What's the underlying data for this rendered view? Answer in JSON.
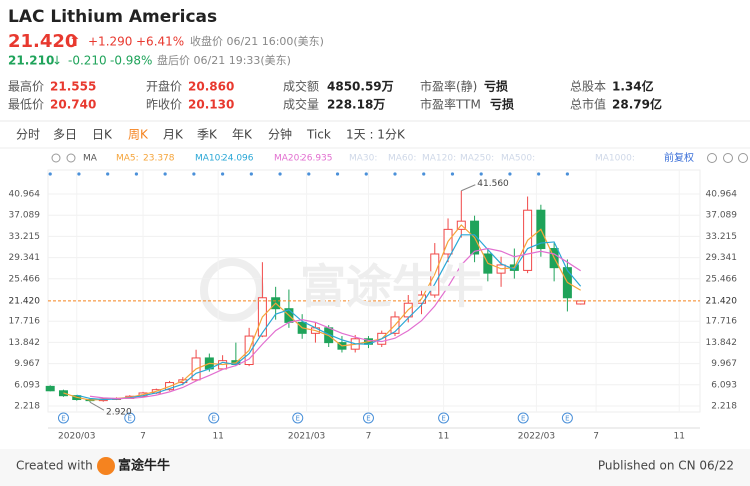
{
  "header": {
    "title": "LAC Lithium Americas",
    "price": "21.420",
    "arrow_up": "⬆",
    "change": "+1.290",
    "change_pct": "+6.41%",
    "close_info": "收盘价 06/21 16:00(美东)",
    "after_price": "21.210",
    "arrow_down": "↓",
    "after_change": "-0.210",
    "after_pct": "-0.98%",
    "after_info": "盘后价 06/21 19:33(美东)"
  },
  "stats": [
    [
      [
        "最高价",
        "21.555"
      ],
      [
        "开盘价",
        "20.860"
      ],
      [
        "成交额",
        "4850.59万"
      ],
      [
        "市盈率(静)",
        "亏损"
      ],
      [
        "总股本",
        "1.34亿"
      ]
    ],
    [
      [
        "最低价",
        "20.740"
      ],
      [
        "昨收价",
        "20.130"
      ],
      [
        "成交量",
        "228.18万"
      ],
      [
        "市盈率TTM",
        "亏损"
      ],
      [
        "总市值",
        "28.79亿"
      ]
    ]
  ],
  "tabs": [
    "分时",
    "多日",
    "日K",
    "周K",
    "月K",
    "季K",
    "年K",
    "分钟",
    "Tick",
    "1天 : 1分K"
  ],
  "active_tab": "周K",
  "indicator": {
    "ma": "MA",
    "inactive": [
      "MA30:",
      "MA60:",
      "MA120:",
      "MA250:",
      "MA500:",
      "MA1000:"
    ],
    "adjust": "前复权"
  },
  "event_marker": "E",
  "watermark": "富途牛牛",
  "footer": {
    "created": "Created with",
    "brand": "富途牛牛",
    "published": "Published on CN 06/22"
  },
  "chart_data": {
    "type": "candlestick",
    "x": [
      0,
      3,
      6,
      9,
      12,
      15,
      18,
      21,
      24,
      27,
      30,
      33,
      36,
      39,
      42,
      45,
      48,
      51,
      54,
      57,
      60,
      63,
      66,
      69,
      72,
      75,
      78,
      81,
      84,
      87,
      90,
      93,
      96,
      99,
      102,
      105,
      108,
      111,
      114,
      117,
      120
    ],
    "open": [
      5.8,
      5.0,
      4.1,
      3.4,
      3.2,
      3.5,
      3.6,
      4.0,
      4.6,
      5.2,
      6.5,
      7.0,
      11.0,
      9.0,
      10.5,
      9.8,
      15.0,
      22.0,
      20.0,
      17.5,
      15.5,
      16.5,
      13.8,
      12.6,
      14.5,
      13.5,
      15.5,
      18.5,
      21.0,
      22.5,
      30.0,
      34.5,
      36.0,
      30.0,
      26.5,
      28.0,
      27.0,
      38.0,
      31.0,
      27.5,
      20.86
    ],
    "high": [
      6.0,
      5.2,
      4.2,
      3.6,
      3.6,
      3.8,
      4.2,
      4.8,
      5.4,
      6.8,
      7.5,
      12.5,
      11.8,
      11.5,
      13.8,
      16.5,
      28.5,
      24.0,
      23.5,
      19.0,
      17.5,
      17.0,
      15.0,
      15.2,
      15.0,
      16.0,
      19.5,
      22.5,
      24.0,
      32.0,
      36.5,
      41.56,
      37.0,
      31.0,
      29.5,
      31.0,
      40.5,
      39.0,
      32.0,
      29.0,
      21.555
    ],
    "low": [
      4.9,
      3.9,
      3.2,
      2.92,
      3.0,
      3.3,
      3.5,
      3.9,
      4.4,
      5.0,
      6.0,
      6.8,
      8.5,
      8.8,
      9.5,
      9.5,
      14.8,
      18.0,
      16.5,
      14.5,
      13.8,
      13.0,
      12.0,
      12.0,
      12.8,
      13.0,
      15.0,
      17.5,
      19.0,
      22.0,
      28.5,
      33.0,
      28.5,
      25.0,
      24.0,
      25.5,
      26.5,
      29.5,
      25.0,
      19.5,
      20.74
    ],
    "close": [
      5.0,
      4.1,
      3.4,
      3.2,
      3.5,
      3.6,
      4.0,
      4.6,
      5.2,
      6.5,
      7.0,
      11.0,
      9.0,
      10.5,
      9.8,
      15.0,
      22.0,
      20.0,
      17.5,
      15.5,
      16.5,
      13.8,
      12.6,
      14.5,
      13.5,
      15.5,
      18.5,
      21.0,
      22.5,
      30.0,
      34.5,
      36.0,
      30.0,
      26.5,
      28.0,
      27.0,
      38.0,
      31.0,
      27.5,
      22.0,
      21.42
    ],
    "up_color": "#f04848",
    "down_color": "#1fa35a",
    "series": [
      {
        "name": "MA5:",
        "color": "#f5a43a",
        "values": [
          null,
          4.6,
          3.8,
          3.3,
          3.4,
          3.6,
          3.8,
          4.3,
          4.9,
          5.8,
          6.8,
          9.0,
          10.0,
          9.8,
          10.1,
          12.4,
          18.5,
          21.0,
          18.8,
          16.5,
          16.0,
          15.1,
          13.2,
          13.5,
          14.0,
          14.5,
          17.0,
          19.8,
          21.8,
          26.3,
          32.3,
          35.3,
          33.0,
          28.3,
          27.3,
          27.5,
          32.5,
          34.5,
          29.3,
          24.8,
          23.378
        ]
      },
      {
        "name": "MA10:",
        "color": "#2aa7d6",
        "values": [
          null,
          null,
          4.2,
          3.6,
          3.4,
          3.5,
          3.7,
          4.1,
          4.6,
          5.4,
          6.2,
          8.2,
          9.0,
          10.2,
          9.8,
          11.8,
          15.6,
          19.0,
          19.8,
          17.7,
          16.5,
          15.3,
          14.3,
          13.6,
          13.5,
          14.5,
          15.8,
          18.3,
          20.7,
          24.5,
          29.0,
          33.5,
          33.5,
          30.8,
          28.2,
          27.2,
          31.0,
          32.0,
          32.2,
          27.0,
          24.096
        ]
      },
      {
        "name": "MA20:",
        "color": "#e26fd0",
        "values": [
          null,
          null,
          null,
          4.0,
          3.7,
          3.6,
          3.6,
          3.8,
          4.2,
          4.8,
          5.6,
          6.8,
          7.8,
          8.9,
          9.6,
          10.8,
          13.5,
          16.0,
          17.5,
          18.0,
          17.5,
          16.5,
          15.5,
          14.8,
          14.2,
          14.0,
          14.6,
          16.0,
          17.8,
          20.5,
          24.0,
          28.0,
          30.5,
          31.0,
          30.5,
          29.5,
          30.0,
          30.5,
          30.0,
          28.5,
          26.935
        ]
      }
    ],
    "xlim": [
      -0.5,
      147
    ],
    "xticks": [
      {
        "value": 6,
        "label": "2020/03"
      },
      {
        "value": 21,
        "label": "7"
      },
      {
        "value": 38,
        "label": "11"
      },
      {
        "value": 58,
        "label": "2021/03"
      },
      {
        "value": 72,
        "label": "7"
      },
      {
        "value": 89,
        "label": "11"
      },
      {
        "value": 110,
        "label": "2022/03"
      },
      {
        "value": 123.5,
        "label": "7"
      },
      {
        "value": 142.3,
        "label": "11"
      }
    ],
    "ylim": [
      1.12,
      45.35
    ],
    "yticks": [
      2.218,
      6.093,
      9.967,
      13.842,
      17.716,
      25.466,
      29.341,
      33.215,
      37.089,
      40.964
    ],
    "current_price": {
      "value": 21.42,
      "label": "21.420"
    },
    "annotations": [
      {
        "x": 93,
        "value": 41.56,
        "label": "41.560"
      },
      {
        "x": 9,
        "value": 2.92,
        "label": "2.920"
      }
    ],
    "grid": true
  }
}
